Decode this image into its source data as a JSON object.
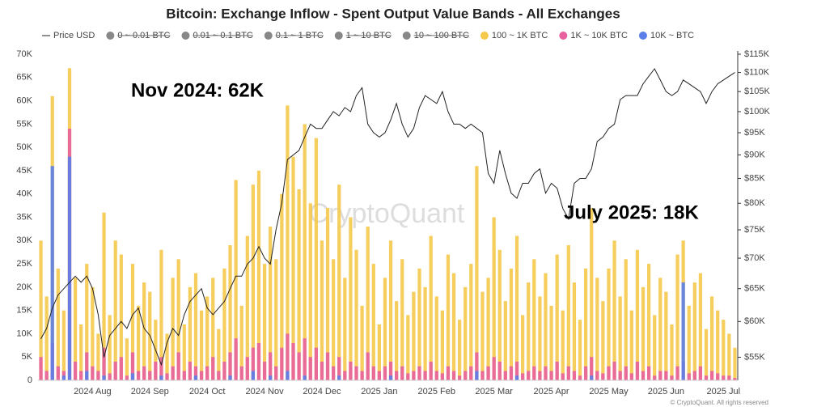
{
  "chart_data": {
    "type": "bar",
    "title": "Bitcoin: Exchange Inflow - Spent Output Value Bands - All Exchanges",
    "watermark": "CryptoQuant",
    "footer": "© CryptoQuant. All rights reserved",
    "annotations": [
      "Nov 2024: 62K",
      "July 2025: 18K"
    ],
    "categories": [
      null,
      null,
      null,
      null,
      null,
      null,
      null,
      null,
      null,
      "2024 Aug",
      null,
      null,
      null,
      null,
      null,
      null,
      null,
      null,
      null,
      "2024 Sep",
      null,
      null,
      null,
      null,
      null,
      null,
      null,
      null,
      null,
      "2024 Oct",
      null,
      null,
      null,
      null,
      null,
      null,
      null,
      null,
      null,
      "2024 Nov",
      null,
      null,
      null,
      null,
      null,
      null,
      null,
      null,
      null,
      "2024 Dec",
      null,
      null,
      null,
      null,
      null,
      null,
      null,
      null,
      null,
      "2025 Jan",
      null,
      null,
      null,
      null,
      null,
      null,
      null,
      null,
      null,
      "2025 Feb",
      null,
      null,
      null,
      null,
      null,
      null,
      null,
      null,
      null,
      "2025 Mar",
      null,
      null,
      null,
      null,
      null,
      null,
      null,
      null,
      null,
      "2025 Apr",
      null,
      null,
      null,
      null,
      null,
      null,
      null,
      null,
      null,
      "2025 May",
      null,
      null,
      null,
      null,
      null,
      null,
      null,
      null,
      null,
      "2025 Jun",
      null,
      null,
      null,
      null,
      null,
      null,
      null,
      null,
      null,
      "2025 Jul",
      null,
      null
    ],
    "series": [
      {
        "name": "Price USD",
        "type": "line",
        "axis": "y2",
        "color": "#222222",
        "values": [
          57500,
          59000,
          62000,
          64000,
          65000,
          66000,
          67000,
          66000,
          67000,
          65000,
          61000,
          55000,
          58000,
          59000,
          60000,
          59000,
          61000,
          62000,
          59000,
          58000,
          56000,
          54000,
          57000,
          59000,
          58000,
          61000,
          63000,
          64000,
          65000,
          62000,
          61000,
          62000,
          63000,
          65000,
          67000,
          67000,
          69000,
          70000,
          72000,
          70000,
          69000,
          75000,
          80000,
          89000,
          90000,
          91000,
          94000,
          97000,
          96000,
          96000,
          98000,
          100000,
          99000,
          101000,
          100000,
          104000,
          106000,
          97000,
          95000,
          94000,
          95000,
          98000,
          102000,
          97000,
          94000,
          96000,
          101000,
          104000,
          103000,
          102000,
          105000,
          100000,
          97000,
          97000,
          96000,
          97000,
          96000,
          95000,
          86000,
          84000,
          91000,
          86000,
          82000,
          81000,
          84000,
          84000,
          86000,
          87000,
          82000,
          84000,
          83000,
          79000,
          77000,
          84000,
          85000,
          85000,
          87000,
          93000,
          94000,
          96000,
          97000,
          103000,
          104000,
          104000,
          104000,
          107000,
          109000,
          111000,
          108000,
          105000,
          104000,
          105000,
          108000,
          107000,
          106000,
          105000,
          102000,
          105000,
          107000,
          108000,
          109000,
          110000
        ]
      },
      {
        "name": "100 ~ 1K BTC",
        "color": "#f5c94d",
        "values": [
          30000,
          18000,
          61000,
          24000,
          15000,
          67000,
          22000,
          12000,
          25000,
          20000,
          10000,
          36000,
          14000,
          30000,
          27000,
          9000,
          25000,
          16000,
          21000,
          19000,
          13000,
          28000,
          10000,
          22000,
          26000,
          12000,
          20000,
          23000,
          15000,
          18000,
          22000,
          11000,
          24000,
          29000,
          43000,
          16000,
          31000,
          42000,
          45000,
          25000,
          33000,
          26000,
          40000,
          59000,
          48000,
          41000,
          55000,
          38000,
          52000,
          30000,
          37000,
          26000,
          42000,
          22000,
          35000,
          28000,
          16000,
          33000,
          25000,
          12000,
          22000,
          30000,
          17000,
          26000,
          14000,
          19000,
          24000,
          20000,
          31000,
          18000,
          15000,
          27000,
          23000,
          13000,
          20000,
          25000,
          46000,
          19000,
          22000,
          35000,
          28000,
          17000,
          24000,
          31000,
          14000,
          21000,
          26000,
          18000,
          23000,
          16000,
          27000,
          15000,
          29000,
          21000,
          13000,
          24000,
          37000,
          22000,
          17000,
          24000,
          30000,
          18000,
          26000,
          15000,
          28000,
          20000,
          25000,
          14000,
          22000,
          19000,
          12000,
          27000,
          30000,
          16000,
          21000,
          23000,
          11000,
          18000,
          15000,
          13000,
          10000,
          7000
        ]
      },
      {
        "name": "1K ~ 10K BTC",
        "color": "#e8609e",
        "values": [
          5000,
          2000,
          8000,
          3000,
          2000,
          54000,
          4000,
          2000,
          6000,
          3000,
          2000,
          7000,
          1500,
          4000,
          5000,
          1000,
          6000,
          2000,
          3000,
          2000,
          4000,
          5000,
          1500,
          3000,
          6000,
          2000,
          4000,
          3000,
          2000,
          3000,
          5000,
          2000,
          4000,
          6000,
          9000,
          3000,
          5000,
          7000,
          8000,
          4000,
          6000,
          3000,
          7000,
          10000,
          8000,
          6000,
          9000,
          5000,
          7000,
          4000,
          6000,
          3000,
          5000,
          2000,
          4000,
          3000,
          2000,
          6000,
          3000,
          2000,
          3000,
          4000,
          2000,
          3000,
          1500,
          2000,
          3000,
          2000,
          4000,
          2000,
          1500,
          3000,
          2000,
          1000,
          2000,
          3000,
          6000,
          2000,
          3000,
          5000,
          4000,
          2000,
          3000,
          4000,
          1500,
          2000,
          3000,
          2000,
          3000,
          2000,
          4000,
          1500,
          3000,
          2000,
          1000,
          3000,
          5000,
          2000,
          1500,
          3000,
          4000,
          2000,
          3000,
          1500,
          4000,
          2000,
          3000,
          1000,
          2000,
          2000,
          1000,
          3000,
          4000,
          1500,
          2000,
          3000,
          1000,
          2000,
          1500,
          1000,
          1000,
          500
        ]
      },
      {
        "name": "10K ~ BTC",
        "color": "#5b7fe8",
        "values": [
          0,
          0,
          46000,
          0,
          1000,
          48000,
          0,
          0,
          2000,
          0,
          0,
          1000,
          0,
          0,
          0,
          0,
          1500,
          0,
          0,
          0,
          0,
          1000,
          0,
          0,
          0,
          0,
          0,
          1000,
          0,
          0,
          0,
          0,
          0,
          1000,
          0,
          0,
          0,
          2000,
          0,
          0,
          1000,
          0,
          0,
          2000,
          0,
          0,
          1000,
          0,
          0,
          0,
          0,
          0,
          1000,
          0,
          0,
          0,
          0,
          0,
          0,
          0,
          0,
          1000,
          0,
          0,
          0,
          0,
          0,
          0,
          0,
          0,
          0,
          0,
          0,
          0,
          0,
          0,
          2000,
          0,
          0,
          0,
          0,
          0,
          0,
          1000,
          0,
          0,
          0,
          0,
          0,
          0,
          0,
          0,
          0,
          0,
          0,
          0,
          1000,
          0,
          0,
          0,
          0,
          0,
          0,
          0,
          0,
          0,
          0,
          0,
          0,
          0,
          0,
          0,
          21000,
          0,
          0,
          0,
          0,
          0,
          0,
          0,
          0,
          0
        ]
      }
    ],
    "hidden_series": [
      {
        "name": "0 ~ 0.01 BTC",
        "color": "#888888"
      },
      {
        "name": "0.01 ~ 0.1 BTC",
        "color": "#888888"
      },
      {
        "name": "0.1 ~ 1 BTC",
        "color": "#888888"
      },
      {
        "name": "1 ~ 10 BTC",
        "color": "#888888"
      },
      {
        "name": "10 ~ 100 BTC",
        "color": "#888888"
      }
    ],
    "stacked": false,
    "grid": false,
    "ylim": [
      0,
      70000
    ],
    "yticks": [
      0,
      {
        "value": 5000,
        "label": "5K"
      },
      {
        "value": 10000,
        "label": "10K"
      },
      {
        "value": 15000,
        "label": "15K"
      },
      {
        "value": 20000,
        "label": "20K"
      },
      {
        "value": 25000,
        "label": "25K"
      },
      {
        "value": 30000,
        "label": "30K"
      },
      {
        "value": 35000,
        "label": "35K"
      },
      {
        "value": 40000,
        "label": "40K"
      },
      {
        "value": 45000,
        "label": "45K"
      },
      {
        "value": 50000,
        "label": "50K"
      },
      {
        "value": 55000,
        "label": "55K"
      },
      {
        "value": 60000,
        "label": "60K"
      },
      {
        "value": 65000,
        "label": "65K"
      },
      {
        "value": 70000,
        "label": "70K"
      }
    ],
    "y2_log": true,
    "y2lim": [
      52000,
      115000
    ],
    "y2ticks": [
      {
        "value": 55000,
        "label": "$55K"
      },
      {
        "value": 60000,
        "label": "$60K"
      },
      {
        "value": 65000,
        "label": "$65K"
      },
      {
        "value": 70000,
        "label": "$70K"
      },
      {
        "value": 75000,
        "label": "$75K"
      },
      {
        "value": 80000,
        "label": "$80K"
      },
      {
        "value": 85000,
        "label": "$85K"
      },
      {
        "value": 90000,
        "label": "$90K"
      },
      {
        "value": 95000,
        "label": "$95K"
      },
      {
        "value": 100000,
        "label": "$100K"
      },
      {
        "value": 105000,
        "label": "$105K"
      },
      {
        "value": 110000,
        "label": "$110K"
      },
      {
        "value": 115000,
        "label": "$115K"
      }
    ]
  }
}
